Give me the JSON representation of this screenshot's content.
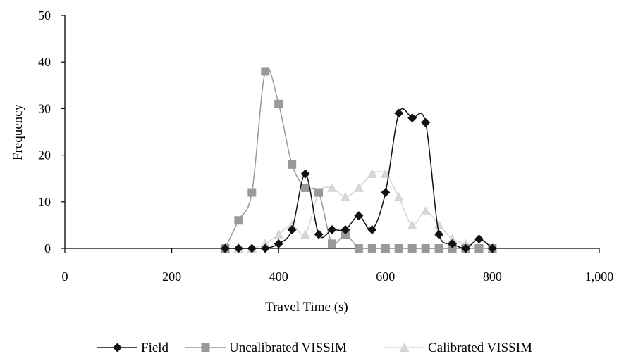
{
  "chart_data": {
    "type": "line",
    "title": "",
    "xlabel": "Travel Time (s)",
    "ylabel": "Frequency",
    "xlim": [
      0,
      1000
    ],
    "ylim": [
      0,
      50
    ],
    "x_ticks": [
      0,
      200,
      400,
      600,
      800,
      1000
    ],
    "x_tick_labels": [
      "0",
      "200",
      "400",
      "600",
      "800",
      "1,000"
    ],
    "y_ticks": [
      0,
      10,
      20,
      30,
      40,
      50
    ],
    "y_tick_labels": [
      "0",
      "10",
      "20",
      "30",
      "40",
      "50"
    ],
    "grid": false,
    "legend_position": "bottom",
    "x": [
      300,
      325,
      350,
      375,
      400,
      425,
      450,
      475,
      500,
      525,
      550,
      575,
      600,
      625,
      650,
      675,
      700,
      725,
      750,
      775,
      800
    ],
    "series": [
      {
        "name": "Field",
        "marker": "diamond",
        "color": "#111111",
        "values": [
          0,
          0,
          0,
          0,
          1,
          4,
          16,
          3,
          4,
          4,
          7,
          4,
          12,
          29,
          28,
          27,
          3,
          1,
          0,
          2,
          0
        ]
      },
      {
        "name": "Uncalibrated VISSIM",
        "marker": "square",
        "color": "#999999",
        "values": [
          0,
          6,
          12,
          38,
          31,
          18,
          13,
          12,
          1,
          3,
          0,
          0,
          0,
          0,
          0,
          0,
          0,
          0,
          0,
          0,
          0
        ]
      },
      {
        "name": "Calibrated VISSIM",
        "marker": "triangle",
        "color": "#d6d6d6",
        "values": [
          0,
          0,
          0,
          1,
          3,
          5,
          3,
          12,
          13,
          11,
          13,
          16,
          16,
          11,
          5,
          8,
          5,
          2,
          1,
          0,
          0
        ]
      }
    ]
  }
}
